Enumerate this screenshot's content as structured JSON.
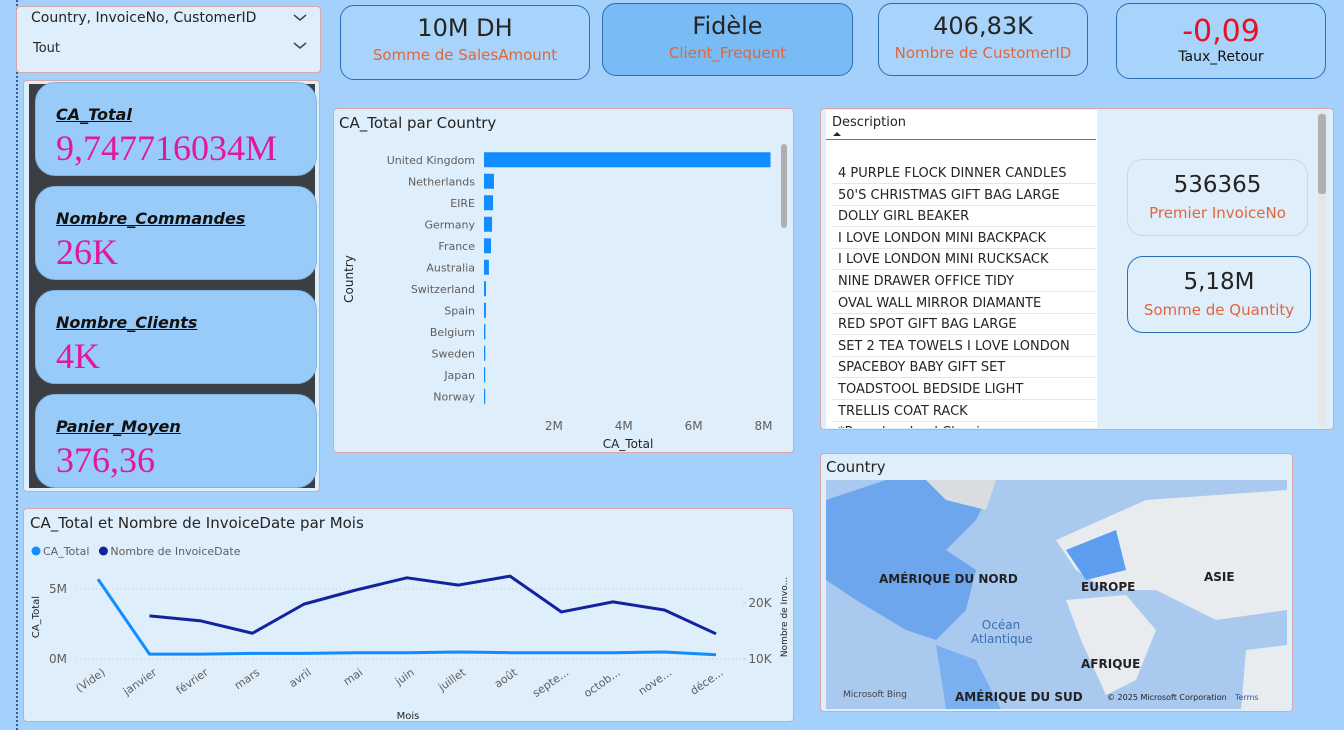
{
  "slicer": {
    "title": "Country, InvoiceNo, CustomerID",
    "value": "Tout"
  },
  "kpi_cards": [
    {
      "value": "10M DH",
      "label": "Somme de SalesAmount"
    },
    {
      "value": "Fidèle",
      "label": "Client_Frequent"
    },
    {
      "value": "406,83K",
      "label": "Nombre de CustomerID"
    },
    {
      "value": "-0,09",
      "label": "Taux_Retour"
    }
  ],
  "side_cards": [
    {
      "label": "CA_Total",
      "value": "9,747716034M"
    },
    {
      "label": "Nombre_Commandes",
      "value": "26K"
    },
    {
      "label": "Nombre_Clients",
      "value": "4K"
    },
    {
      "label": "Panier_Moyen",
      "value": "376,36"
    }
  ],
  "table": {
    "header": "Description",
    "rows": [
      "4 PURPLE FLOCK DINNER CANDLES",
      "50'S CHRISTMAS GIFT BAG LARGE",
      "DOLLY GIRL BEAKER",
      "I LOVE LONDON MINI BACKPACK",
      "I LOVE LONDON MINI RUCKSACK",
      "NINE DRAWER OFFICE TIDY",
      "OVAL WALL MIRROR DIAMANTE",
      "RED SPOT GIFT BAG LARGE",
      "SET 2 TEA TOWELS I LOVE LONDON",
      "SPACEBOY BABY GIFT SET",
      "TOADSTOOL BEDSIDE LIGHT",
      "TRELLIS COAT RACK",
      "*Boombox Ipod Classic"
    ]
  },
  "right_cards": [
    {
      "value": "536365",
      "label": "Premier InvoiceNo"
    },
    {
      "value": "5,18M",
      "label": "Somme de Quantity"
    }
  ],
  "map": {
    "title": "Country",
    "labels": [
      "AMÉRIQUE DU NORD",
      "EUROPE",
      "ASIE",
      "Océan Atlantique",
      "AFRIQUE",
      "AMÉRIQUE DU SUD"
    ],
    "credits": [
      "Microsoft Bing",
      "© 2025 Microsoft Corporation",
      "Terms"
    ]
  },
  "chart_data": [
    {
      "type": "bar",
      "orientation": "horizontal",
      "title": "CA_Total par Country",
      "x_label": "CA_Total",
      "y_label": "Country",
      "categories": [
        "United Kingdom",
        "Netherlands",
        "EIRE",
        "Germany",
        "France",
        "Australia",
        "Switzerland",
        "Spain",
        "Belgium",
        "Sweden",
        "Japan",
        "Norway"
      ],
      "values": [
        8200000,
        285000,
        260000,
        230000,
        200000,
        140000,
        57000,
        55000,
        40000,
        37000,
        35000,
        35000
      ],
      "color": "#118dff",
      "xlim": [
        0,
        8300000
      ],
      "xticks": [
        {
          "value": 2000000,
          "label": "2M"
        },
        {
          "value": 4000000,
          "label": "4M"
        },
        {
          "value": 6000000,
          "label": "6M"
        },
        {
          "value": 8000000,
          "label": "8M"
        }
      ],
      "grid": false
    },
    {
      "type": "line",
      "title": "CA_Total et Nombre de InvoiceDate par Mois",
      "x_label": "Mois",
      "y_label": "CA_Total",
      "y2_label": "Nombre de Invo...",
      "categories": [
        "(Vide)",
        "janvier",
        "février",
        "mars",
        "avril",
        "mai",
        "juin",
        "juillet",
        "août",
        "septe...",
        "octob...",
        "nove...",
        "déce..."
      ],
      "series": [
        {
          "name": "CA_Total",
          "color": "#118dff",
          "values": [
            5700000,
            350000,
            350000,
            400000,
            400000,
            450000,
            450000,
            500000,
            450000,
            450000,
            450000,
            500000,
            300000
          ]
        },
        {
          "name": "Nombre de InvoiceDate",
          "color": "#12239e",
          "axis": "y2",
          "values": [
            null,
            17700,
            16800,
            14600,
            19800,
            22300,
            24500,
            23200,
            24800,
            18400,
            20200,
            18750,
            14500
          ]
        }
      ],
      "ylim": [
        0,
        6000000
      ],
      "yticks": [
        {
          "value": 0,
          "label": "0M"
        },
        {
          "value": 5000000,
          "label": "5M"
        }
      ],
      "y2lim": [
        10000,
        25000
      ],
      "y2ticks": [
        {
          "value": 10000,
          "label": "10K"
        },
        {
          "value": 20000,
          "label": "20K"
        }
      ],
      "grid": true,
      "legend": "top-left"
    }
  ]
}
